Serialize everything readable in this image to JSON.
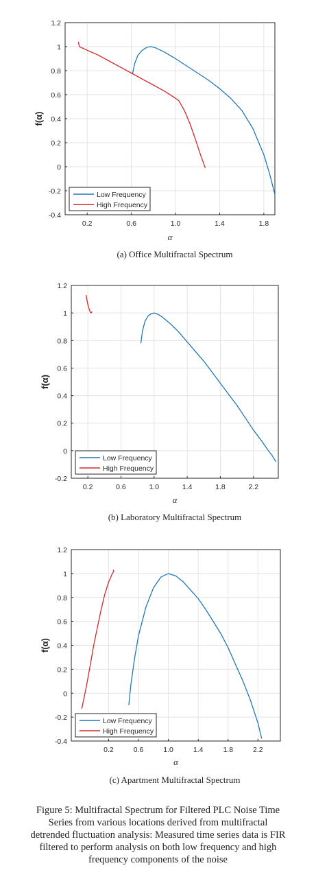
{
  "chart_data": [
    {
      "type": "line",
      "caption": "(a) Office Multifractal Spectrum",
      "xlabel": "α",
      "ylabel": "f(α)",
      "xlim": [
        0,
        1.9
      ],
      "ylim": [
        -0.4,
        1.2
      ],
      "xticks": [
        0.2,
        0.6,
        1.0,
        1.4,
        1.8
      ],
      "xtick_labels": [
        "0.2",
        "0.6",
        "1.0",
        "1.4",
        "1.8"
      ],
      "yticks": [
        -0.4,
        -0.2,
        0,
        0.2,
        0.4,
        0.6,
        0.8,
        1,
        1.2
      ],
      "ytick_labels": [
        "-0.4",
        "-0.2",
        "0",
        "0.2",
        "0.4",
        "0.6",
        "0.8",
        "1",
        "1.2"
      ],
      "grid": true,
      "legend_position": "bottom-left",
      "series": [
        {
          "name": "Low Frequency",
          "color": "#1f77b4",
          "x": [
            0.61,
            0.63,
            0.66,
            0.7,
            0.74,
            0.78,
            0.82,
            0.9,
            1.0,
            1.1,
            1.2,
            1.3,
            1.4,
            1.5,
            1.6,
            1.7,
            1.8,
            1.85,
            1.9
          ],
          "y": [
            0.77,
            0.86,
            0.93,
            0.97,
            0.995,
            1.0,
            0.99,
            0.955,
            0.9,
            0.84,
            0.78,
            0.72,
            0.65,
            0.57,
            0.47,
            0.32,
            0.1,
            -0.05,
            -0.23
          ]
        },
        {
          "name": "High Frequency",
          "color": "#d62728",
          "x": [
            0.12,
            0.125,
            0.13,
            0.2,
            0.3,
            0.4,
            0.5,
            0.6,
            0.7,
            0.8,
            0.9,
            1.0,
            1.03,
            1.08,
            1.13,
            1.18,
            1.23,
            1.27
          ],
          "y": [
            1.04,
            1.02,
            1.0,
            0.97,
            0.93,
            0.88,
            0.83,
            0.78,
            0.73,
            0.68,
            0.63,
            0.57,
            0.55,
            0.47,
            0.36,
            0.23,
            0.09,
            -0.01
          ]
        }
      ]
    },
    {
      "type": "line",
      "caption": "(b) Laboratory Multifractal Spectrum",
      "xlabel": "α",
      "ylabel": "f(α)",
      "xlim": [
        0,
        2.5
      ],
      "ylim": [
        -0.2,
        1.2
      ],
      "xticks": [
        0.2,
        0.6,
        1.0,
        1.4,
        1.8,
        2.2
      ],
      "xtick_labels": [
        "0.2",
        "0.6",
        "1.0",
        "1.4",
        "1.8",
        "2.2"
      ],
      "yticks": [
        -0.2,
        0,
        0.2,
        0.4,
        0.6,
        0.8,
        1,
        1.2
      ],
      "ytick_labels": [
        "-0.2",
        "0",
        "0.2",
        "0.4",
        "0.6",
        "0.8",
        "1",
        "1.2"
      ],
      "grid": true,
      "legend_position": "bottom-left",
      "series": [
        {
          "name": "Low Frequency",
          "color": "#1f77b4",
          "x": [
            0.84,
            0.86,
            0.89,
            0.93,
            0.97,
            1.0,
            1.05,
            1.1,
            1.2,
            1.3,
            1.4,
            1.5,
            1.6,
            1.7,
            1.8,
            1.9,
            2.0,
            2.1,
            2.2,
            2.3,
            2.38,
            2.42,
            2.45,
            2.47
          ],
          "y": [
            0.78,
            0.87,
            0.94,
            0.98,
            0.995,
            1.0,
            0.99,
            0.97,
            0.92,
            0.86,
            0.79,
            0.72,
            0.65,
            0.57,
            0.49,
            0.41,
            0.33,
            0.24,
            0.15,
            0.07,
            0.0,
            -0.03,
            -0.06,
            -0.08
          ]
        },
        {
          "name": "High Frequency",
          "color": "#d62728",
          "x": [
            0.18,
            0.19,
            0.2,
            0.21,
            0.22,
            0.23,
            0.24,
            0.25
          ],
          "y": [
            1.13,
            1.09,
            1.06,
            1.04,
            1.02,
            1.005,
            1.0,
            1.01
          ]
        }
      ]
    },
    {
      "type": "line",
      "caption": "(c) Apartment Multifractal Spectrum",
      "xlabel": "α",
      "ylabel": "f(α)",
      "xlim": [
        -0.3,
        2.5
      ],
      "ylim": [
        -0.4,
        1.2
      ],
      "xticks": [
        0.2,
        0.6,
        1.0,
        1.4,
        1.8,
        2.2
      ],
      "xtick_labels": [
        "0.2",
        "0.6",
        "1.0",
        "1.4",
        "1.8",
        "2.2"
      ],
      "yticks": [
        -0.4,
        -0.2,
        0,
        0.2,
        0.4,
        0.6,
        0.8,
        1,
        1.2
      ],
      "ytick_labels": [
        "-0.4",
        "-0.2",
        "0",
        "0.2",
        "0.4",
        "0.6",
        "0.8",
        "1",
        "1.2"
      ],
      "grid": true,
      "legend_position": "bottom-left",
      "series": [
        {
          "name": "Low Frequency",
          "color": "#1f77b4",
          "x": [
            0.47,
            0.5,
            0.55,
            0.6,
            0.7,
            0.8,
            0.9,
            1.0,
            1.1,
            1.2,
            1.3,
            1.4,
            1.5,
            1.6,
            1.7,
            1.8,
            1.9,
            2.0,
            2.1,
            2.2,
            2.25
          ],
          "y": [
            -0.1,
            0.08,
            0.3,
            0.48,
            0.72,
            0.88,
            0.97,
            1.0,
            0.98,
            0.93,
            0.86,
            0.79,
            0.7,
            0.6,
            0.5,
            0.38,
            0.24,
            0.1,
            -0.06,
            -0.25,
            -0.38
          ]
        },
        {
          "name": "High Frequency",
          "color": "#d62728",
          "x": [
            -0.16,
            -0.1,
            -0.05,
            0.0,
            0.05,
            0.1,
            0.15,
            0.2,
            0.23,
            0.25,
            0.27,
            0.26
          ],
          "y": [
            -0.13,
            0.05,
            0.22,
            0.4,
            0.55,
            0.7,
            0.83,
            0.93,
            0.97,
            1.0,
            1.02,
            1.03
          ]
        }
      ]
    }
  ],
  "figure_caption_lines": [
    "Figure 5: Multifractal Spectrum for Filtered PLC Noise Time",
    "Series from various locations derived from multifractal",
    "detrended fluctuation analysis: Measured time series data is FIR",
    "filtered to perform analysis on both low frequency and high",
    "frequency components of the noise"
  ]
}
